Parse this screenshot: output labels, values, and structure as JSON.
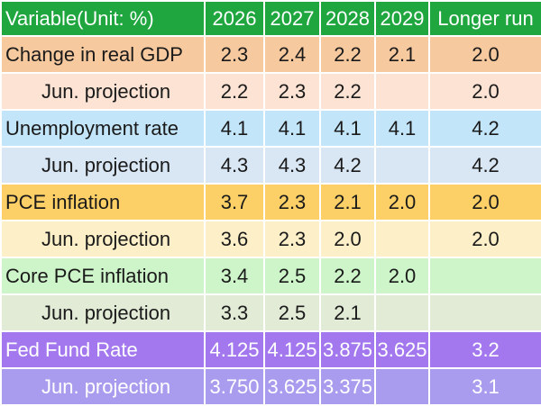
{
  "chart_data": {
    "type": "table",
    "columns": [
      "Variable(Unit: %)",
      "2026",
      "2027",
      "2028",
      "2029",
      "Longer run"
    ],
    "rows": [
      {
        "label": "Change in real GDP",
        "indent": false,
        "bg": "#f7c99f",
        "values": [
          "2.3",
          "2.4",
          "2.2",
          "2.1",
          "2.0"
        ]
      },
      {
        "label": "Jun. projection",
        "indent": true,
        "bg": "#fce3d3",
        "values": [
          "2.2",
          "2.3",
          "2.2",
          "",
          "2.0"
        ]
      },
      {
        "label": "Unemployment rate",
        "indent": false,
        "bg": "#c3e5f9",
        "values": [
          "4.1",
          "4.1",
          "4.1",
          "4.1",
          "4.2"
        ]
      },
      {
        "label": "Jun. projection",
        "indent": true,
        "bg": "#d9e6f4",
        "values": [
          "4.3",
          "4.3",
          "4.2",
          "",
          "4.2"
        ]
      },
      {
        "label": "PCE inflation",
        "indent": false,
        "bg": "#fcd067",
        "values": [
          "3.7",
          "2.3",
          "2.1",
          "2.0",
          "2.0"
        ]
      },
      {
        "label": "Jun. projection",
        "indent": true,
        "bg": "#fdf0c8",
        "values": [
          "3.6",
          "2.3",
          "2.0",
          "",
          "2.0"
        ]
      },
      {
        "label": "Core PCE inflation",
        "indent": false,
        "bg": "#cdf5c9",
        "values": [
          "3.4",
          "2.5",
          "2.2",
          "2.0",
          ""
        ]
      },
      {
        "label": "Jun. projection",
        "indent": true,
        "bg": "#e1ebd6",
        "values": [
          "3.3",
          "2.5",
          "2.1",
          "",
          ""
        ]
      },
      {
        "label": "Fed Fund Rate",
        "indent": false,
        "bg": "#a378ee",
        "light_text": true,
        "values": [
          "4.125",
          "4.125",
          "3.875",
          "3.625",
          "3.2"
        ]
      },
      {
        "label": "Jun. projection",
        "indent": true,
        "bg": "#a99cee",
        "light_text": true,
        "values": [
          "3.750",
          "3.625",
          "3.375",
          "",
          "3.1"
        ]
      }
    ]
  },
  "colors": {
    "header_bg": "#1fa63f",
    "header_text": "#ffffff",
    "grid_line": "#ffffff",
    "body_text": "#1a1a1a"
  }
}
